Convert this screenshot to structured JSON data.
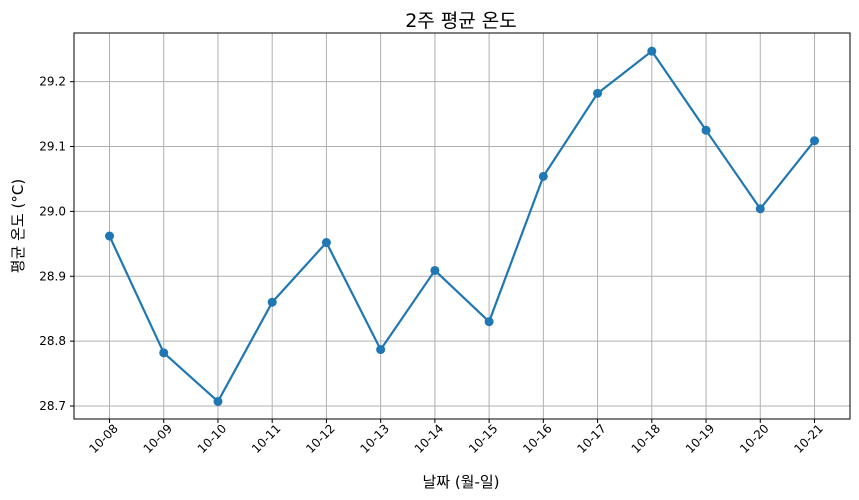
{
  "chart_data": {
    "type": "line",
    "title": "2주 평균 온도",
    "xlabel": "날짜 (월-일)",
    "ylabel": "평균 온도 (°C)",
    "categories": [
      "10-08",
      "10-09",
      "10-10",
      "10-11",
      "10-12",
      "10-13",
      "10-14",
      "10-15",
      "10-16",
      "10-17",
      "10-18",
      "10-19",
      "10-20",
      "10-21"
    ],
    "series": [
      {
        "name": "평균 온도",
        "color": "#1f77b4",
        "values": [
          28.962,
          28.782,
          28.707,
          28.86,
          28.952,
          28.787,
          28.909,
          28.83,
          29.054,
          29.182,
          29.247,
          29.125,
          29.004,
          29.109
        ]
      }
    ],
    "ylim": [
      28.68,
      29.275
    ],
    "yticks": [
      28.7,
      28.8,
      28.9,
      29.0,
      29.1,
      29.2
    ],
    "ytick_labels": [
      "28.7",
      "28.8",
      "28.9",
      "29.0",
      "29.1",
      "29.2"
    ],
    "grid": true,
    "marker": "circle"
  }
}
